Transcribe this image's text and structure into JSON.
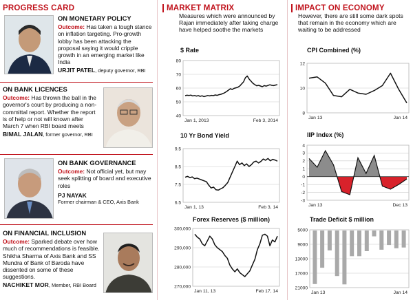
{
  "progress_card": {
    "heading": "PROGRESS CARD",
    "items": [
      {
        "title": "ON MONETARY POLICY",
        "outcome_label": "Outcome:",
        "outcome_text": "Has taken a tough stance on inflation targeting. Pro-growth lobby has been attacking the proposal saying it would cripple growth in an emerging market like India",
        "name": "URJIT PATEL",
        "role": ", deputy governor, RBI"
      },
      {
        "title": "ON BANK LICENCES",
        "outcome_label": "Outcome:",
        "outcome_text": "Has thrown the ball in the governor's court by producing a non-committal report. Whether the report is of help or not will known after March 7 when RBI board meets",
        "name": "BIMAL JALAN",
        "role": ", former governor, RBI"
      },
      {
        "title": "ON BANK GOVERNANCE",
        "outcome_label": "Outcome:",
        "outcome_text": "Not official yet, but may seek splitting of board and executive roles",
        "name": "PJ NAYAK",
        "role": "Former chairman & CEO, Axis Bank"
      },
      {
        "title": "ON FINANCIAL INCLUSION",
        "outcome_label": "Outcome:",
        "outcome_text": "Sparked debate over how much of recommendations is feasible. Shikha Sharma of Axis Bank and SS Mundra of Bank of Baroda have dissented on some of these suggestions.",
        "name": "NACHIKET MOR",
        "role": ", Member, RBI Board"
      }
    ]
  },
  "market_matrix": {
    "heading": "MARKET MATRIX",
    "description": "Measures which were announced by Rajan immediately after taking charge have helped soothe the markets"
  },
  "impact": {
    "heading": "IMPACT ON ECONOMY",
    "description": "However, there are still some dark spots that remain in the economy which are waiting to be addressed"
  },
  "colors": {
    "accent": "#c0121b",
    "line": "#111111",
    "bars": "#a9a9a9",
    "neg_fill": "#d8222b",
    "pos_fill": "#8c8c8c"
  },
  "chart_data": [
    {
      "id": "rate",
      "type": "line",
      "title": "$ Rate",
      "ylim": [
        40,
        80
      ],
      "yticks": [
        40,
        50,
        60,
        70,
        80
      ],
      "xlabels": [
        "Jan 1, 2013",
        "Feb 3, 2014"
      ],
      "values": [
        54.5,
        54.8,
        54.6,
        54.9,
        54.3,
        54.6,
        54.2,
        54.5,
        54.0,
        54.4,
        53.8,
        54.2,
        54.6,
        54.3,
        54.7,
        54.5,
        55.0,
        54.7,
        55.2,
        55.5,
        56.0,
        56.6,
        57.5,
        58.5,
        59.5,
        59.0,
        59.8,
        60.2,
        60.6,
        61.5,
        63.0,
        64.5,
        67.5,
        68.8,
        66.5,
        65.0,
        63.5,
        62.5,
        61.7,
        62.0,
        61.5,
        61.0,
        61.8,
        61.4,
        61.9,
        62.4,
        62.0,
        61.8,
        62.2,
        62.5
      ]
    },
    {
      "id": "bond",
      "type": "line",
      "title": "10 Yr Bond Yield",
      "ylim": [
        6.5,
        9.5
      ],
      "yticks": [
        6.5,
        7.5,
        8.5,
        9.5
      ],
      "xlabels": [
        "Jan 1, 13",
        "Feb 3, 14"
      ],
      "values": [
        7.9,
        7.95,
        7.88,
        7.92,
        7.82,
        7.85,
        7.8,
        7.75,
        7.7,
        7.65,
        7.45,
        7.3,
        7.35,
        7.2,
        7.18,
        7.25,
        7.32,
        7.45,
        7.6,
        7.9,
        8.2,
        8.5,
        8.8,
        8.6,
        8.7,
        8.55,
        8.65,
        8.5,
        8.6,
        8.75,
        8.8,
        8.7,
        8.78,
        8.92,
        8.85,
        8.95,
        8.82,
        8.9,
        8.86,
        8.8
      ]
    },
    {
      "id": "forex",
      "type": "line",
      "title": "Forex Reserves ($ million)",
      "ylim": [
        270000,
        300000
      ],
      "yticks": [
        270000,
        280000,
        290000,
        300000
      ],
      "ytick_labels": [
        "270,000",
        "280,000",
        "290,000",
        "300,000"
      ],
      "xlabels": [
        "Jan 11, 13",
        "Feb 17, 14"
      ],
      "values": [
        297000,
        295500,
        294500,
        292000,
        291000,
        293500,
        296000,
        294500,
        291500,
        290000,
        289000,
        288000,
        286000,
        284500,
        281000,
        279000,
        277500,
        279000,
        277000,
        276000,
        275000,
        276500,
        278000,
        281000,
        284000,
        289000,
        292000,
        296500,
        297000,
        296000,
        291000,
        294000,
        293000,
        296000
      ]
    },
    {
      "id": "cpi",
      "type": "line",
      "title": "CPI Combined (%)",
      "ylim": [
        8,
        12
      ],
      "yticks": [
        8,
        10,
        12
      ],
      "xlabels": [
        "Jan 13",
        "Jan 14"
      ],
      "values": [
        10.8,
        10.9,
        10.4,
        9.4,
        9.3,
        9.9,
        9.6,
        9.5,
        9.8,
        10.2,
        11.2,
        9.9,
        8.8
      ]
    },
    {
      "id": "iip",
      "type": "area",
      "title": "IIP Index (%)",
      "ylim": [
        -3,
        4
      ],
      "yticks": [
        -3,
        -2,
        -1,
        0,
        1,
        2,
        3,
        4
      ],
      "xlabels": [
        "Jan 13",
        "Dec 13"
      ],
      "values": [
        2.3,
        1.2,
        3.3,
        1.5,
        -1.9,
        -2.3,
        2.4,
        0.4,
        2.7,
        -1.2,
        -1.6,
        -1.0,
        -0.3
      ]
    },
    {
      "id": "trade",
      "type": "bar",
      "title": "Trade Deficit $ million",
      "ylim": [
        5000,
        21000
      ],
      "yticks": [
        5000,
        9000,
        13000,
        17000,
        21000
      ],
      "xlabels": [
        "Jan 13",
        "Jan 14"
      ],
      "values": [
        20000,
        15500,
        10700,
        17800,
        20100,
        12300,
        12300,
        10900,
        6800,
        10500,
        9200,
        10100,
        9900
      ]
    }
  ]
}
